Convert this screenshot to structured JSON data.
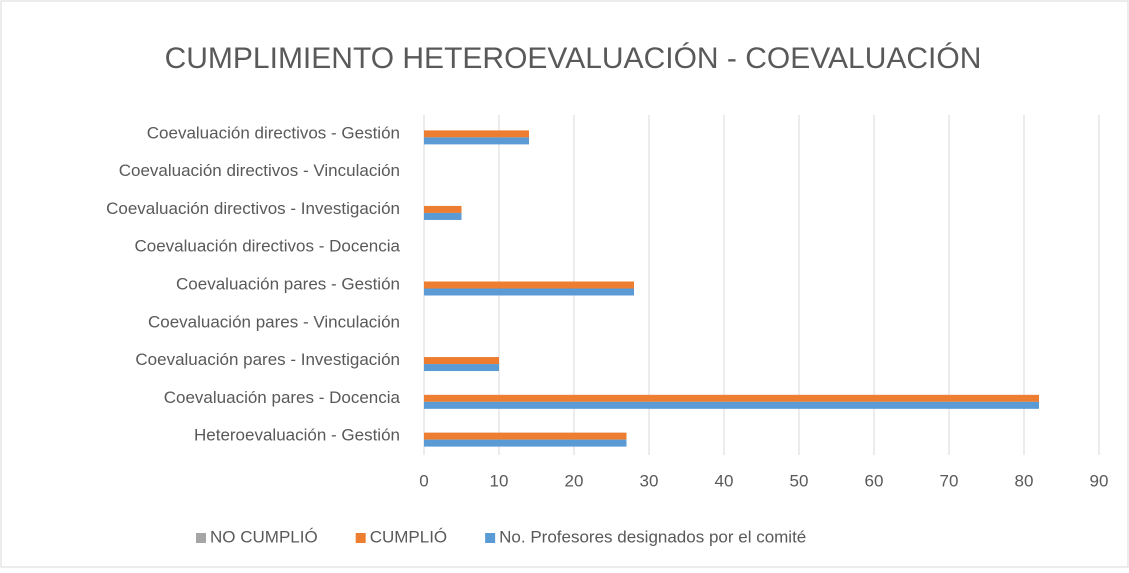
{
  "chart_data": {
    "type": "hbar",
    "title": "CUMPLIMIENTO HETEROEVALUACIÓN - COEVALUACIÓN",
    "categories": [
      "Coevaluación directivos - Gestión",
      "Coevaluación directivos - Vinculación",
      "Coevaluación directivos - Investigación",
      "Coevaluación directivos - Docencia",
      "Coevaluación pares - Gestión",
      "Coevaluación pares - Vinculación",
      "Coevaluación pares - Investigación",
      "Coevaluación pares - Docencia",
      "Heteroevaluación - Gestión"
    ],
    "series": [
      {
        "name": "NO CUMPLIÓ",
        "color": "#a5a5a5",
        "values": [
          0,
          0,
          0,
          0,
          0,
          0,
          0,
          0,
          0
        ]
      },
      {
        "name": "CUMPLIÓ",
        "color": "#ed7d31",
        "values": [
          14,
          0,
          5,
          0,
          28,
          0,
          10,
          82,
          27
        ]
      },
      {
        "name": "No. Profesores designados por el comité",
        "color": "#5b9bd5",
        "values": [
          14,
          0,
          5,
          0,
          28,
          0,
          10,
          82,
          27
        ]
      }
    ],
    "xlim": [
      0,
      90
    ],
    "xticks": [
      0,
      10,
      20,
      30,
      40,
      50,
      60,
      70,
      80,
      90
    ],
    "grid": true,
    "legend": "bottom"
  }
}
